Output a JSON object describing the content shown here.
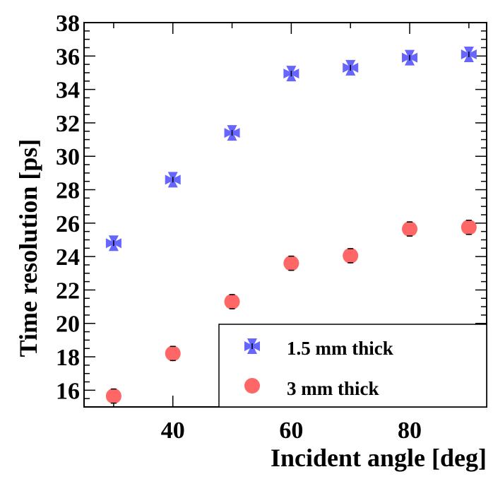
{
  "chart_data": {
    "type": "scatter",
    "xlabel": "Incident angle [deg]",
    "ylabel": "Time resolution [ps]",
    "xlim": [
      25,
      93
    ],
    "ylim": [
      15,
      38
    ],
    "x_ticks": [
      40,
      60,
      80
    ],
    "y_ticks": [
      16,
      18,
      20,
      22,
      24,
      26,
      28,
      30,
      32,
      34,
      36,
      38
    ],
    "grid": false,
    "legend_position": "bottom-right",
    "series": [
      {
        "name": "1.5 mm thick",
        "marker": "cross",
        "color": "#6666ff",
        "x": [
          30,
          40,
          50,
          60,
          70,
          80,
          90
        ],
        "values": [
          24.8,
          28.6,
          31.4,
          34.95,
          35.3,
          35.9,
          36.1
        ]
      },
      {
        "name": "3 mm thick",
        "marker": "circle",
        "color": "#ff6666",
        "x": [
          30,
          40,
          50,
          60,
          70,
          80,
          90
        ],
        "values": [
          15.65,
          18.2,
          21.3,
          23.6,
          24.05,
          25.65,
          25.75
        ]
      }
    ]
  }
}
